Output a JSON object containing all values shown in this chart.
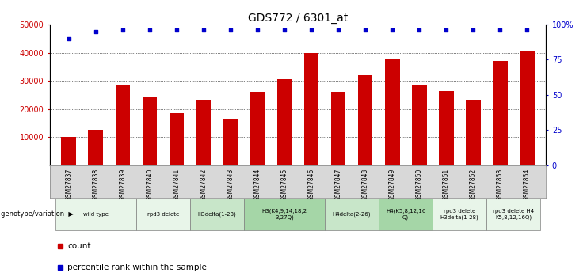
{
  "title": "GDS772 / 6301_at",
  "samples": [
    "GSM27837",
    "GSM27838",
    "GSM27839",
    "GSM27840",
    "GSM27841",
    "GSM27842",
    "GSM27843",
    "GSM27844",
    "GSM27845",
    "GSM27846",
    "GSM27847",
    "GSM27848",
    "GSM27849",
    "GSM27850",
    "GSM27851",
    "GSM27852",
    "GSM27853",
    "GSM27854"
  ],
  "counts": [
    10000,
    12500,
    28500,
    24500,
    18500,
    23000,
    16500,
    26000,
    30500,
    40000,
    26000,
    32000,
    38000,
    28500,
    26500,
    23000,
    37000,
    40500
  ],
  "pct_vals": [
    45000,
    47500,
    48000,
    48000,
    48000,
    48000,
    48000,
    48000,
    48000,
    48000,
    48000,
    48000,
    48000,
    48000,
    48000,
    48000,
    48000,
    48000
  ],
  "bar_color": "#cc0000",
  "dot_color": "#0000cc",
  "ylim_left": [
    0,
    50000
  ],
  "ylim_right": [
    0,
    100
  ],
  "yticks_left": [
    10000,
    20000,
    30000,
    40000,
    50000
  ],
  "ytick_labels_left": [
    "10000",
    "20000",
    "30000",
    "40000",
    "50000"
  ],
  "yticks_right": [
    0,
    25,
    50,
    75,
    100
  ],
  "ytick_labels_right": [
    "0",
    "25",
    "50",
    "75",
    "100%"
  ],
  "groups": [
    {
      "label": "wild type",
      "start": 0,
      "end": 3,
      "color": "#e8f5e9"
    },
    {
      "label": "rpd3 delete",
      "start": 3,
      "end": 5,
      "color": "#e8f5e9"
    },
    {
      "label": "H3delta(1-28)",
      "start": 5,
      "end": 7,
      "color": "#c8e6c9"
    },
    {
      "label": "H3(K4,9,14,18,2\n3,27Q)",
      "start": 7,
      "end": 10,
      "color": "#a5d6a7"
    },
    {
      "label": "H4delta(2-26)",
      "start": 10,
      "end": 12,
      "color": "#c8e6c9"
    },
    {
      "label": "H4(K5,8,12,16\nQ)",
      "start": 12,
      "end": 14,
      "color": "#a5d6a7"
    },
    {
      "label": "rpd3 delete\nH3delta(1-28)",
      "start": 14,
      "end": 16,
      "color": "#e8f5e9"
    },
    {
      "label": "rpd3 delete H4\nK5,8,12,16Q)",
      "start": 16,
      "end": 18,
      "color": "#e8f5e9"
    }
  ],
  "background_color": "#ffffff",
  "title_fontsize": 10,
  "tick_fontsize": 7,
  "label_fontsize": 6,
  "bar_width": 0.55
}
